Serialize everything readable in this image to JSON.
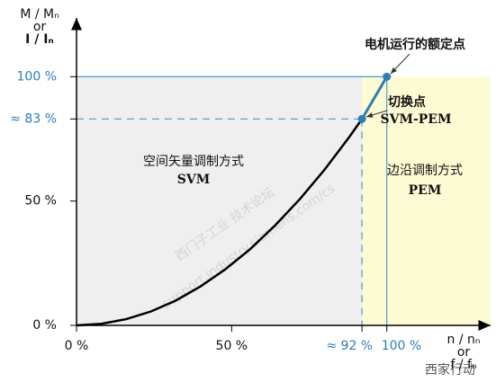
{
  "chart_data": {
    "type": "line",
    "y_label": [
      "M / Mₙ",
      "or",
      "I / Iₙ"
    ],
    "x_label": [
      "n / nₙ",
      "or",
      "f / fₙ"
    ],
    "xlim": [
      0,
      132
    ],
    "ylim": [
      0,
      120
    ],
    "xticks": [
      {
        "value": 0,
        "label": "0 %"
      },
      {
        "value": 50,
        "label": "50 %"
      },
      {
        "value": 92,
        "label": "≈ 92 %",
        "color": "#2e7db5"
      },
      {
        "value": 100,
        "label": "100 %",
        "color": "#2e7db5"
      }
    ],
    "yticks": [
      {
        "value": 0,
        "label": "0 %"
      },
      {
        "value": 50,
        "label": "50 %"
      },
      {
        "value": 83,
        "label": "≈ 83 %",
        "color": "#2e7db5"
      },
      {
        "value": 100,
        "label": "100 %",
        "color": "#2e7db5"
      }
    ],
    "regions": [
      {
        "name": "空间矢量调制方式",
        "mode": "SVM",
        "xrange": [
          0,
          92
        ],
        "yrange": [
          0,
          100
        ],
        "color": "#efefef"
      },
      {
        "name": "边沿调制方式",
        "mode": "PEM",
        "xrange": [
          92,
          132
        ],
        "yrange": [
          0,
          100
        ],
        "color": "#fdfbd3"
      }
    ],
    "series": [
      {
        "color": "#000000",
        "x": [
          0,
          8,
          16,
          24,
          32,
          40,
          48,
          56,
          64,
          72,
          80,
          88,
          92
        ],
        "values": [
          0,
          0.63,
          2.5,
          5.6,
          10.0,
          15.7,
          22.6,
          30.7,
          40.2,
          50.8,
          62.7,
          75.9,
          83
        ]
      },
      {
        "color": "#2e7db5",
        "x": [
          92,
          100
        ],
        "values": [
          83,
          100
        ]
      }
    ],
    "annotations": [
      {
        "text": "电机运行的额定点"
      },
      {
        "text": "切换点"
      },
      {
        "text": "SVM-PEM"
      }
    ],
    "watermarks": [
      "西门子工业  技术论坛",
      "support.industry.siemens.com/cs",
      "西家行动"
    ]
  }
}
